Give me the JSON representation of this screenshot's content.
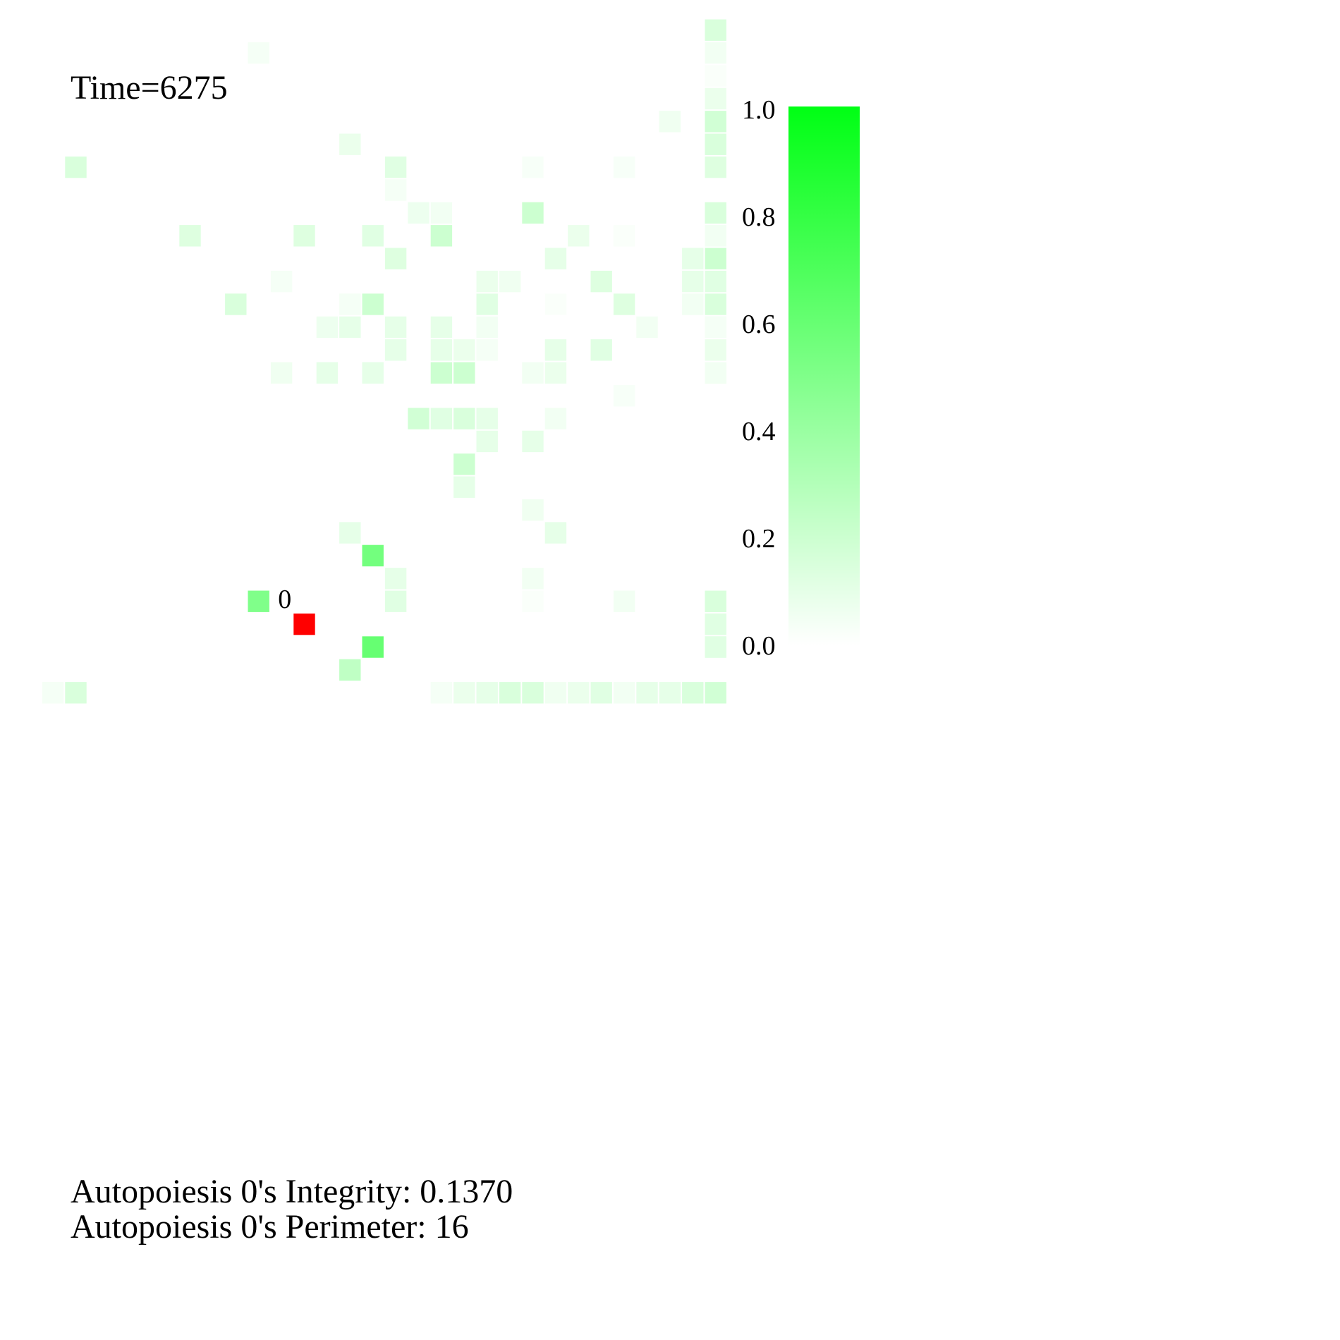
{
  "time": {
    "text": "Time=6275"
  },
  "stats": {
    "integrity": "Autopoiesis 0's Integrity: 0.1370",
    "perimeter": "Autopoiesis 0's Perimeter: 16"
  },
  "colors": {
    "cell_low": "#ffffff",
    "cell_high": "#00ff14",
    "agent": "#ff0000",
    "text": "#000000"
  },
  "chart_data": {
    "type": "heatmap",
    "grid_size": [
      30,
      30
    ],
    "value_range": [
      0,
      1
    ],
    "colorbar": {
      "ticks": [
        0.0,
        0.2,
        0.4,
        0.6,
        0.8,
        1.0
      ],
      "tick_labels": [
        "0.0",
        "0.2",
        "0.4",
        "0.6",
        "0.8",
        "1.0"
      ]
    },
    "agents": [
      {
        "label": "0",
        "col": 12,
        "row": 26
      }
    ],
    "cells": [
      [
        30,
        0,
        0.15
      ],
      [
        30,
        1,
        0.05
      ],
      [
        30,
        2,
        0.02
      ],
      [
        30,
        3,
        0.08
      ],
      [
        30,
        4,
        0.18
      ],
      [
        30,
        5,
        0.15
      ],
      [
        30,
        6,
        0.13
      ],
      [
        30,
        8,
        0.15
      ],
      [
        30,
        9,
        0.05
      ],
      [
        30,
        10,
        0.2
      ],
      [
        30,
        11,
        0.12
      ],
      [
        30,
        12,
        0.15
      ],
      [
        30,
        13,
        0.1
      ],
      [
        30,
        14,
        0.08
      ],
      [
        30,
        15,
        0.08
      ],
      [
        30,
        25,
        0.15
      ],
      [
        30,
        26,
        0.1
      ],
      [
        30,
        27,
        0.1
      ],
      [
        30,
        29,
        0.18
      ],
      [
        10,
        1,
        0.04
      ],
      [
        28,
        4,
        0.06
      ],
      [
        14,
        5,
        0.08
      ],
      [
        2,
        6,
        0.15
      ],
      [
        16,
        6,
        0.12
      ],
      [
        22,
        6,
        0.03
      ],
      [
        26,
        6,
        0.03
      ],
      [
        16,
        7,
        0.04
      ],
      [
        17,
        8,
        0.07
      ],
      [
        18,
        8,
        0.05
      ],
      [
        22,
        8,
        0.2
      ],
      [
        7,
        9,
        0.13
      ],
      [
        12,
        9,
        0.13
      ],
      [
        15,
        9,
        0.12
      ],
      [
        18,
        9,
        0.2
      ],
      [
        24,
        9,
        0.08
      ],
      [
        26,
        9,
        0.02
      ],
      [
        16,
        10,
        0.13
      ],
      [
        23,
        10,
        0.1
      ],
      [
        29,
        10,
        0.1
      ],
      [
        11,
        11,
        0.04
      ],
      [
        20,
        11,
        0.08
      ],
      [
        21,
        11,
        0.06
      ],
      [
        25,
        11,
        0.13
      ],
      [
        29,
        11,
        0.1
      ],
      [
        9,
        12,
        0.15
      ],
      [
        14,
        12,
        0.04
      ],
      [
        15,
        12,
        0.2
      ],
      [
        20,
        12,
        0.12
      ],
      [
        23,
        12,
        0.02
      ],
      [
        26,
        12,
        0.13
      ],
      [
        29,
        12,
        0.05
      ],
      [
        13,
        13,
        0.07
      ],
      [
        14,
        13,
        0.1
      ],
      [
        16,
        13,
        0.1
      ],
      [
        18,
        13,
        0.1
      ],
      [
        20,
        13,
        0.05
      ],
      [
        27,
        13,
        0.05
      ],
      [
        30,
        13,
        0.04
      ],
      [
        16,
        14,
        0.1
      ],
      [
        18,
        14,
        0.1
      ],
      [
        19,
        14,
        0.08
      ],
      [
        20,
        14,
        0.04
      ],
      [
        23,
        14,
        0.1
      ],
      [
        25,
        14,
        0.12
      ],
      [
        11,
        15,
        0.06
      ],
      [
        13,
        15,
        0.1
      ],
      [
        15,
        15,
        0.1
      ],
      [
        18,
        15,
        0.2
      ],
      [
        19,
        15,
        0.2
      ],
      [
        22,
        15,
        0.05
      ],
      [
        23,
        15,
        0.08
      ],
      [
        30,
        15,
        0.05
      ],
      [
        26,
        16,
        0.03
      ],
      [
        17,
        17,
        0.18
      ],
      [
        18,
        17,
        0.12
      ],
      [
        19,
        17,
        0.15
      ],
      [
        20,
        17,
        0.1
      ],
      [
        23,
        17,
        0.05
      ],
      [
        20,
        18,
        0.1
      ],
      [
        22,
        18,
        0.1
      ],
      [
        19,
        19,
        0.2
      ],
      [
        19,
        20,
        0.1
      ],
      [
        22,
        21,
        0.06
      ],
      [
        14,
        22,
        0.1
      ],
      [
        23,
        22,
        0.1
      ],
      [
        15,
        23,
        0.55
      ],
      [
        16,
        24,
        0.1
      ],
      [
        22,
        24,
        0.05
      ],
      [
        10,
        25,
        0.5
      ],
      [
        16,
        25,
        0.12
      ],
      [
        22,
        25,
        0.02
      ],
      [
        26,
        25,
        0.05
      ],
      [
        30,
        25,
        0.15
      ],
      [
        30,
        26,
        0.12
      ],
      [
        15,
        27,
        0.6
      ],
      [
        30,
        27,
        0.12
      ],
      [
        14,
        28,
        0.25
      ],
      [
        1,
        29,
        0.04
      ],
      [
        2,
        29,
        0.15
      ],
      [
        18,
        29,
        0.04
      ],
      [
        19,
        29,
        0.08
      ],
      [
        20,
        29,
        0.1
      ],
      [
        21,
        29,
        0.15
      ],
      [
        22,
        29,
        0.15
      ],
      [
        23,
        29,
        0.06
      ],
      [
        24,
        29,
        0.08
      ],
      [
        25,
        29,
        0.12
      ],
      [
        26,
        29,
        0.05
      ],
      [
        27,
        29,
        0.1
      ],
      [
        28,
        29,
        0.1
      ],
      [
        29,
        29,
        0.15
      ]
    ]
  }
}
